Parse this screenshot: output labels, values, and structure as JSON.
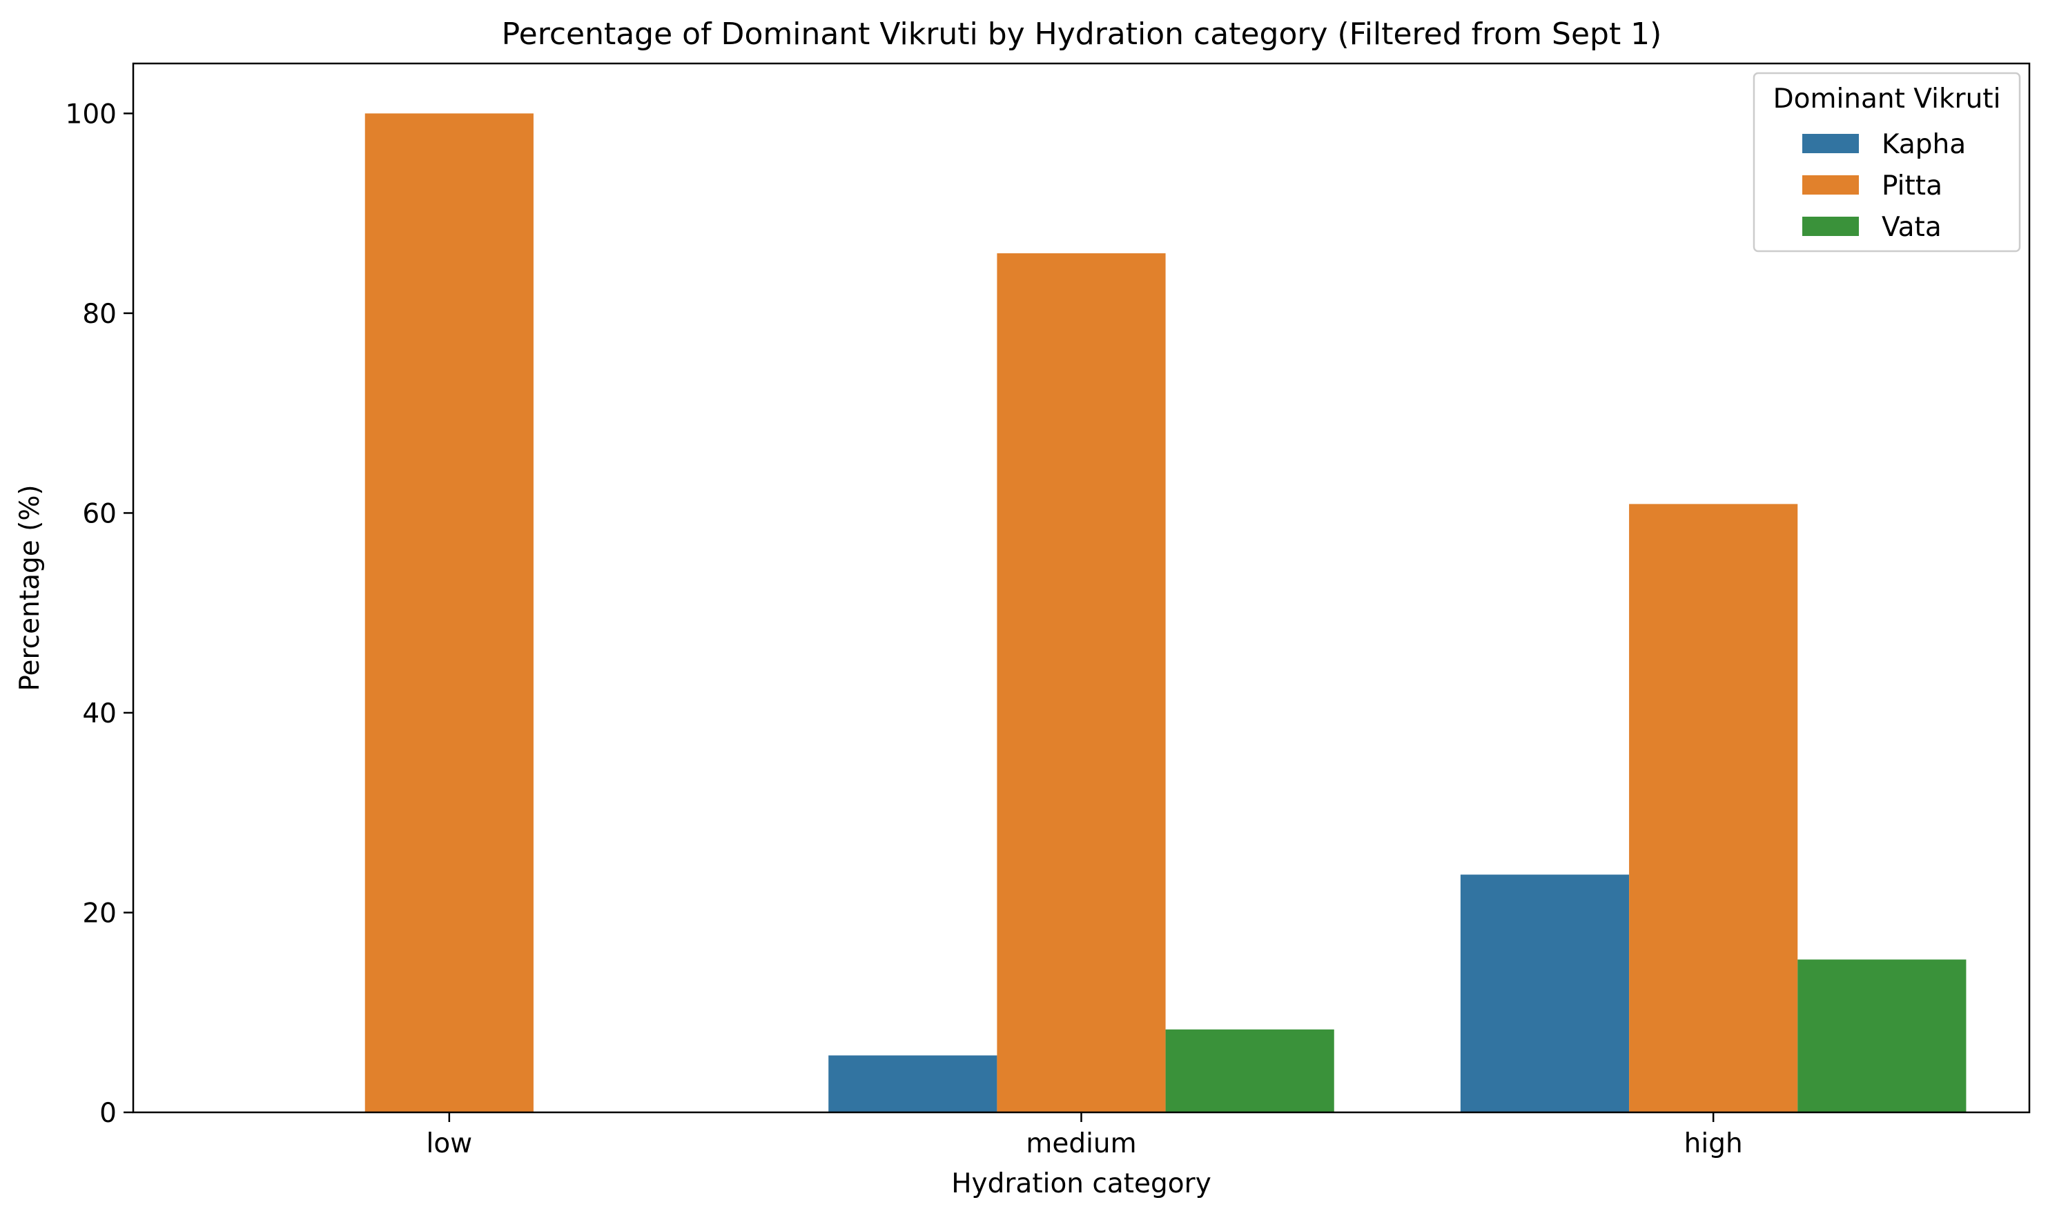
{
  "chart_data": {
    "type": "bar",
    "title": "Percentage of Dominant Vikruti by Hydration category (Filtered from Sept 1)",
    "xlabel": "Hydration category",
    "ylabel": "Percentage (%)",
    "categories": [
      "low",
      "medium",
      "high"
    ],
    "ylim": [
      0,
      105
    ],
    "yticks": [
      0,
      20,
      40,
      60,
      80,
      100
    ],
    "grid": false,
    "legend": {
      "title": "Dominant Vikruti",
      "placement": "top-right"
    },
    "series": [
      {
        "name": "Kapha",
        "color": "#3274a1",
        "values": [
          0,
          5.7,
          23.8
        ]
      },
      {
        "name": "Pitta",
        "color": "#e1812c",
        "values": [
          100,
          86.0,
          60.9
        ]
      },
      {
        "name": "Vata",
        "color": "#3a923a",
        "values": [
          0,
          8.3,
          15.3
        ]
      }
    ]
  }
}
